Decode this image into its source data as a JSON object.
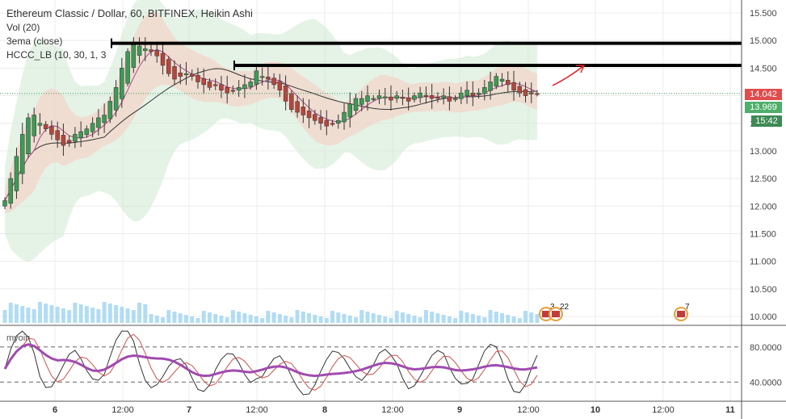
{
  "header": {
    "title": "Ethereum Classic / Dollar, 60, BITFINEX, Heikin Ashi",
    "indicators": [
      "Vol (20)",
      "3ema (close)",
      "HCCC_LB (10, 30, 1, 3"
    ]
  },
  "oscillator": {
    "name": "myoin",
    "levels": [
      "80.0000",
      "40.0000"
    ]
  },
  "price_tags": {
    "last": "14.042",
    "ema": "13.969",
    "countdown": "15:42"
  },
  "event_badges": [
    "3",
    "22",
    "7"
  ],
  "colors": {
    "up": "#3d9a55",
    "down": "#b5463c",
    "last_tag": "#e04c4c",
    "ema_tag": "#4eae6a",
    "countdown_tag": "#3d8a55",
    "band_green": "#cfe9d4",
    "band_red": "#f3d3c8",
    "volume": "#9fd4f0",
    "rsi": "#a04bb0",
    "arrow": "#e02020"
  },
  "chart_data": {
    "type": "candlestick",
    "x_tick_labels": [
      "6",
      "12:00",
      "7",
      "12:00",
      "8",
      "12:00",
      "9",
      "12:00",
      "10",
      "12:00",
      "11"
    ],
    "y_tick_labels": [
      "15.500",
      "15.000",
      "14.500",
      "14.000",
      "13.500",
      "13.000",
      "12.500",
      "12.000",
      "11.500",
      "11.000",
      "10.500",
      "10.000"
    ],
    "ylim": [
      9.9,
      15.6
    ],
    "close": [
      12.1,
      12.5,
      12.9,
      13.3,
      13.6,
      13.65,
      13.5,
      13.4,
      13.3,
      13.2,
      13.1,
      13.15,
      13.3,
      13.35,
      13.4,
      13.5,
      13.6,
      13.65,
      13.9,
      14.15,
      14.5,
      14.8,
      14.95,
      14.9,
      14.85,
      14.8,
      14.72,
      14.55,
      14.4,
      14.3,
      14.35,
      14.4,
      14.35,
      14.25,
      14.2,
      14.15,
      14.2,
      14.1,
      14.05,
      14.1,
      14.15,
      14.2,
      14.25,
      14.45,
      14.35,
      14.3,
      14.2,
      14.1,
      13.9,
      13.75,
      13.7,
      13.65,
      13.6,
      13.55,
      13.5,
      13.45,
      13.5,
      13.55,
      13.7,
      13.85,
      13.95,
      13.95,
      14.0,
      13.95,
      14.0,
      13.98,
      13.92,
      14.0,
      13.95,
      13.9,
      14.0,
      14.05,
      14.0,
      13.95,
      13.95,
      14.0,
      13.9,
      13.95,
      14.05,
      14.1,
      14.0,
      14.05,
      14.15,
      14.25,
      14.35,
      14.3,
      14.2,
      14.1,
      14.05,
      14.0,
      14.03,
      14.04
    ],
    "annotations": [
      {
        "type": "horizontal_level",
        "value": 14.95
      },
      {
        "type": "horizontal_level",
        "value": 14.55
      }
    ]
  }
}
